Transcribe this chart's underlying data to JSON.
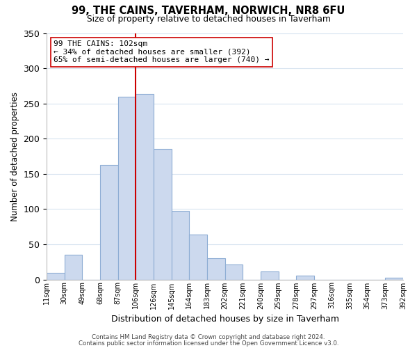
{
  "title": "99, THE CAINS, TAVERHAM, NORWICH, NR8 6FU",
  "subtitle": "Size of property relative to detached houses in Taverham",
  "xlabel": "Distribution of detached houses by size in Taverham",
  "ylabel": "Number of detached properties",
  "bar_color": "#ccd9ee",
  "bar_edge_color": "#8eadd4",
  "bin_left_edges": [
    11,
    30,
    49,
    68,
    87,
    106,
    125,
    144,
    163,
    182,
    201,
    220,
    239,
    258,
    277,
    296,
    315,
    334,
    353,
    372
  ],
  "bar_heights": [
    9,
    35,
    0,
    163,
    260,
    263,
    185,
    97,
    64,
    30,
    21,
    0,
    11,
    0,
    5,
    0,
    0,
    0,
    0,
    2
  ],
  "tick_labels": [
    "11sqm",
    "30sqm",
    "49sqm",
    "68sqm",
    "87sqm",
    "106sqm",
    "126sqm",
    "145sqm",
    "164sqm",
    "183sqm",
    "202sqm",
    "221sqm",
    "240sqm",
    "259sqm",
    "278sqm",
    "297sqm",
    "316sqm",
    "335sqm",
    "354sqm",
    "373sqm",
    "392sqm"
  ],
  "ylim": [
    0,
    350
  ],
  "yticks": [
    0,
    50,
    100,
    150,
    200,
    250,
    300,
    350
  ],
  "vline_x": 106,
  "vline_color": "#cc0000",
  "annotation_title": "99 THE CAINS: 102sqm",
  "annotation_line1": "← 34% of detached houses are smaller (392)",
  "annotation_line2": "65% of semi-detached houses are larger (740) →",
  "annotation_box_color": "#ffffff",
  "annotation_box_edge": "#cc0000",
  "footer1": "Contains HM Land Registry data © Crown copyright and database right 2024.",
  "footer2": "Contains public sector information licensed under the Open Government Licence v3.0.",
  "background_color": "#ffffff",
  "grid_color": "#d8e4f0"
}
